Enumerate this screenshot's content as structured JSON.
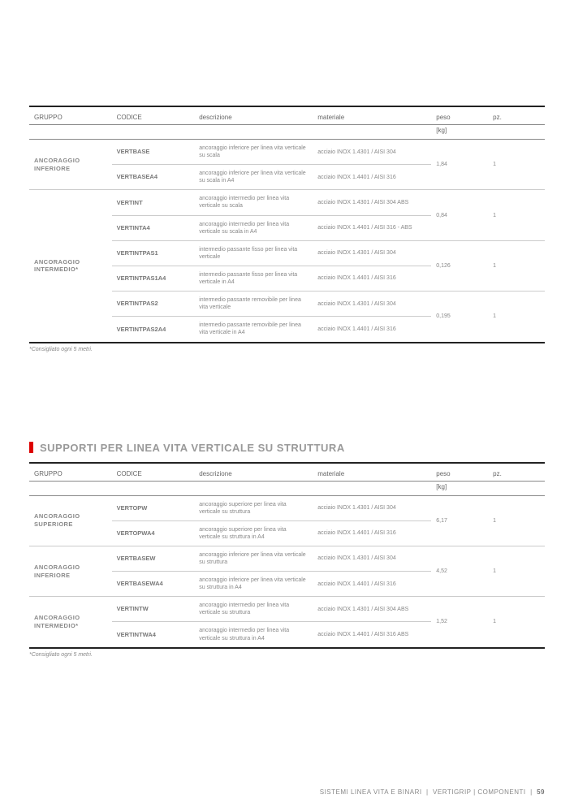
{
  "headers": {
    "gruppo": "GRUPPO",
    "codice": "CODICE",
    "descrizione": "descrizione",
    "materiale": "materiale",
    "peso": "peso",
    "pz": "pz.",
    "pesounit": "[kg]"
  },
  "table1": {
    "footnote": "*Consigliato ogni 5 metri.",
    "groups": [
      {
        "name": "ANCORAGGIO INFERIORE",
        "peso": "1,84",
        "pz": "1",
        "rows": [
          {
            "codice": "VERTBASE",
            "descrizione": "ancoraggio inferiore per linea vita verticale su scala",
            "materiale": "acciaio INOX 1.4301 / AISI 304"
          },
          {
            "codice": "VERTBASEA4",
            "descrizione": "ancoraggio inferiore per linea vita verticale su scala in A4",
            "materiale": "acciaio INOX 1.4401 / AISI 316"
          }
        ]
      },
      {
        "name": "ANCORAGGIO INTERMEDIO*",
        "subgroups": [
          {
            "peso": "0,84",
            "pz": "1",
            "rows": [
              {
                "codice": "VERTINT",
                "descrizione": "ancoraggio intermedio per linea vita verticale su scala",
                "materiale": "acciaio INOX 1.4301 / AISI 304 ABS"
              },
              {
                "codice": "VERTINTA4",
                "descrizione": "ancoraggio intermedio per linea vita verticale su scala in A4",
                "materiale": "acciaio INOX 1.4401 / AISI 316 - ABS"
              }
            ]
          },
          {
            "peso": "0,126",
            "pz": "1",
            "rows": [
              {
                "codice": "VERTINTPAS1",
                "descrizione": "intermedio passante fisso per linea vita verticale",
                "materiale": "acciaio INOX 1.4301 / AISI 304"
              },
              {
                "codice": "VERTINTPAS1A4",
                "descrizione": "intermedio passante fisso per linea vita verticale in A4",
                "materiale": "acciaio INOX 1.4401 / AISI 316"
              }
            ]
          },
          {
            "peso": "0,195",
            "pz": "1",
            "rows": [
              {
                "codice": "VERTINTPAS2",
                "descrizione": "intermedio passante removibile per linea vita verticale",
                "materiale": "acciaio INOX 1.4301 / AISI 304"
              },
              {
                "codice": "VERTINTPAS2A4",
                "descrizione": "intermedio passante removibile per linea vita verticale in A4",
                "materiale": "acciaio INOX 1.4401 / AISI 316"
              }
            ]
          }
        ]
      }
    ]
  },
  "section2": {
    "title": "SUPPORTI PER LINEA VITA VERTICALE SU STRUTTURA"
  },
  "table2": {
    "footnote": "*Consigliato ogni 5 metri.",
    "groups": [
      {
        "name": "ANCORAGGIO SUPERIORE",
        "peso": "6,17",
        "pz": "1",
        "rows": [
          {
            "codice": "VERTOPW",
            "descrizione": "ancoraggio superiore per linea vita verticale su struttura",
            "materiale": "acciaio INOX 1.4301 / AISI 304"
          },
          {
            "codice": "VERTOPWA4",
            "descrizione": "ancoraggio superiore per linea vita verticale su struttura in A4",
            "materiale": "acciaio INOX 1.4401 / AISI 316"
          }
        ]
      },
      {
        "name": "ANCORAGGIO INFERIORE",
        "peso": "4,52",
        "pz": "1",
        "rows": [
          {
            "codice": "VERTBASEW",
            "descrizione": "ancoraggio inferiore per linea vita verticale su struttura",
            "materiale": "acciaio INOX 1.4301 / AISI 304"
          },
          {
            "codice": "VERTBASEWA4",
            "descrizione": "ancoraggio inferiore per linea vita verticale su struttura in A4",
            "materiale": "acciaio INOX 1.4401 / AISI 316"
          }
        ]
      },
      {
        "name": "ANCORAGGIO INTERMEDIO*",
        "peso": "1,52",
        "pz": "1",
        "rows": [
          {
            "codice": "VERTINTW",
            "descrizione": "ancoraggio intermedio per linea vita verticale su struttura",
            "materiale": "acciaio INOX 1.4301 / AISI 304 ABS"
          },
          {
            "codice": "VERTINTWA4",
            "descrizione": "ancoraggio intermedio per linea vita verticale su struttura in A4",
            "materiale": "acciaio INOX 1.4401 / AISI 316 ABS"
          }
        ]
      }
    ]
  },
  "footer": {
    "left": "SISTEMI LINEA VITA E BINARI",
    "mid": "VERTIGRIP | COMPONENTI",
    "page": "59"
  }
}
